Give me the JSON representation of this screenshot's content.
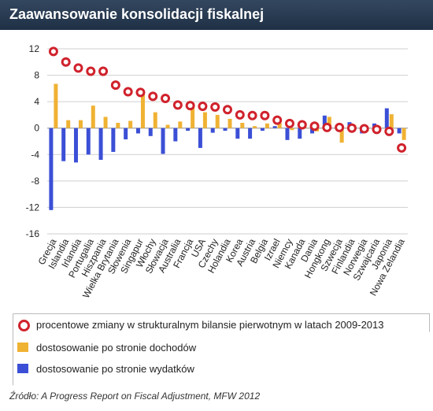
{
  "header": {
    "title": "Zaawansowanie konsolidacji fiskalnej"
  },
  "legend": {
    "circle_label": "procentowe zmiany w strukturalnym bilansie pierwotnym w latach 2009-2013",
    "revenue_label": "dostosowanie po stronie dochodów",
    "expenditure_label": "dostosowanie po stronie wydatków"
  },
  "footer": {
    "source": "Źródło: A Progress Report on Fiscal Adjustment, MFW 2012"
  },
  "colors": {
    "revenue": "#f0b233",
    "expenditure": "#3b4fd6",
    "marker": "#d0222c"
  },
  "chart_data": {
    "type": "bar",
    "title": "Zaawansowanie konsolidacji fiskalnej",
    "ylim": [
      -16,
      12
    ],
    "yticks": [
      12,
      8,
      4,
      0,
      -4,
      -8,
      -12,
      -16
    ],
    "grid": true,
    "categories": [
      "Grecja",
      "Islandia",
      "Irlandia",
      "Portugalia",
      "Hiszpania",
      "Wielka Brytania",
      "Słowenia",
      "Singapur",
      "Włochy",
      "Słowacja",
      "Australia",
      "Francja",
      "USA",
      "Czechy",
      "Holandia",
      "Korea",
      "Austria",
      "Belgia",
      "Izrael",
      "Niemcy",
      "Kanada",
      "Dania",
      "Hongkong",
      "Szwecja",
      "Finlandia",
      "Norwegia",
      "Szwajcaria",
      "Japonia",
      "Nowa Zelandia"
    ],
    "series": [
      {
        "name": "procentowe zmiany w strukturalnym bilansie pierwotnym w latach 2009-2013",
        "type": "scatter",
        "values": [
          11.6,
          10,
          9.1,
          8.6,
          8.6,
          6.5,
          5.5,
          5.4,
          4.8,
          4.5,
          3.5,
          3.4,
          3.3,
          3.2,
          2.8,
          2.0,
          1.9,
          1.9,
          1.2,
          0.7,
          0.5,
          0.3,
          0.1,
          0.1,
          0.0,
          -0.1,
          -0.2,
          -0.5,
          -3.0
        ]
      },
      {
        "name": "dostosowanie po stronie dochodów",
        "values": [
          6.7,
          1.2,
          1.2,
          3.4,
          1.7,
          0.8,
          1.1,
          5.2,
          2.4,
          0.5,
          1.0,
          3.8,
          2.4,
          2.0,
          1.4,
          0.8,
          0.3,
          0.7,
          0.8,
          -0.3,
          0.2,
          -0.5,
          1.7,
          -2.2,
          0.5,
          -0.5,
          0.3,
          2.1,
          -1.8
        ]
      },
      {
        "name": "dostosowanie po stronie wydatków",
        "values": [
          -12.4,
          -5.0,
          -5.2,
          -4.0,
          -4.8,
          -3.6,
          -1.7,
          -0.8,
          -1.2,
          -3.9,
          -2.0,
          -0.4,
          -3.0,
          -0.7,
          -0.4,
          -1.6,
          -1.6,
          -0.4,
          0.3,
          -1.8,
          -1.6,
          -0.8,
          1.9,
          0.2,
          0.9,
          -0.8,
          0.7,
          3.0,
          -0.8
        ]
      }
    ]
  }
}
